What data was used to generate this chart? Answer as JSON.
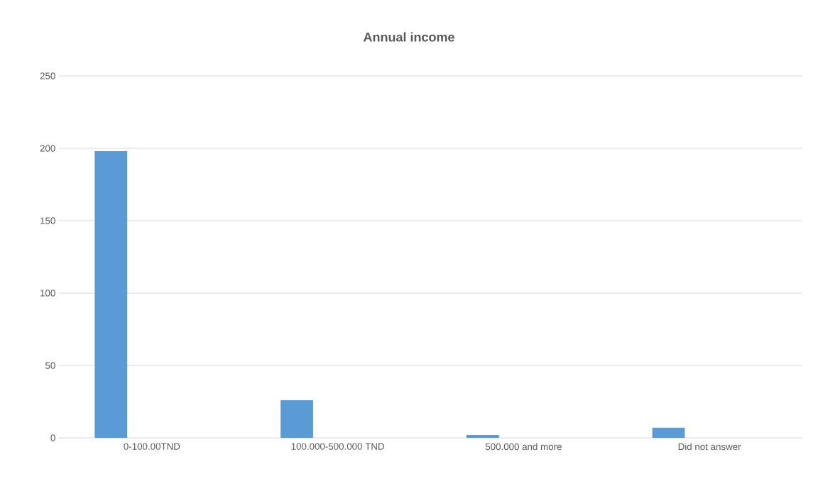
{
  "chart_data": {
    "type": "bar",
    "title": "Annual income",
    "categories": [
      "0-100.00TND",
      "100.000-500.000 TND",
      "500.000 and more",
      "Did not answer"
    ],
    "values": [
      198,
      26,
      2,
      7
    ],
    "color": "#5b9bd5",
    "ylim": [
      0,
      250
    ],
    "yticks": [
      0,
      50,
      100,
      150,
      200,
      250
    ],
    "grid": "y"
  }
}
